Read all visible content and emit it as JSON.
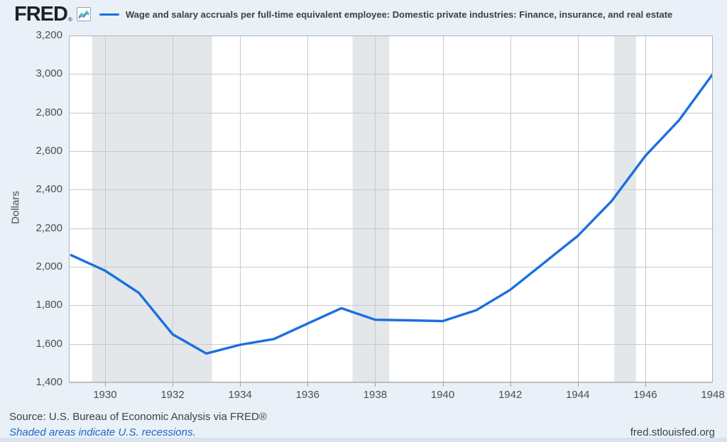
{
  "header": {
    "logo_text": "FRED",
    "registered_mark": "®",
    "series_title": "Wage and salary accruals per full-time equivalent employee: Domestic private industries: Finance, insurance, and real estate"
  },
  "footer": {
    "source": "Source: U.S. Bureau of Economic Analysis via FRED®",
    "shaded_note": "Shaded areas indicate U.S. recessions.",
    "site": "fred.stlouisfed.org"
  },
  "colors": {
    "line": "#1b6fe0",
    "recession_band": "#e3e7ea",
    "gridline": "#c8cacc",
    "plot_border": "#b0b4b8",
    "plot_background": "#ffffff",
    "page_background": "#e9f0f7"
  },
  "chart_data": {
    "type": "line",
    "title": "Wage and salary accruals per full-time equivalent employee: Domestic private industries: Finance, insurance, and real estate",
    "ylabel": "Dollars",
    "xlabel": "",
    "x": [
      1929,
      1930,
      1931,
      1932,
      1933,
      1934,
      1935,
      1936,
      1937,
      1938,
      1939,
      1940,
      1941,
      1942,
      1943,
      1944,
      1945,
      1946,
      1947,
      1948
    ],
    "values": [
      2060,
      1980,
      1865,
      1650,
      1550,
      1595,
      1625,
      1705,
      1785,
      1725,
      1722,
      1718,
      1775,
      1880,
      2020,
      2160,
      2340,
      2575,
      2760,
      3000
    ],
    "ylim": [
      1400,
      3200
    ],
    "xlim": [
      1928.93,
      1948
    ],
    "y_ticks": [
      1400,
      1600,
      1800,
      2000,
      2200,
      2400,
      2600,
      2800,
      3000,
      3200
    ],
    "x_ticks": [
      1930,
      1932,
      1934,
      1936,
      1938,
      1940,
      1942,
      1944,
      1946,
      1948
    ],
    "grid": true,
    "legend": [
      "Wage and salary accruals per full-time equivalent employee: Domestic private industries: Finance, insurance, and real estate"
    ],
    "legend_position": "top",
    "recession_bands": [
      [
        1929.62,
        1933.17
      ],
      [
        1937.33,
        1938.42
      ],
      [
        1945.08,
        1945.73
      ]
    ]
  }
}
